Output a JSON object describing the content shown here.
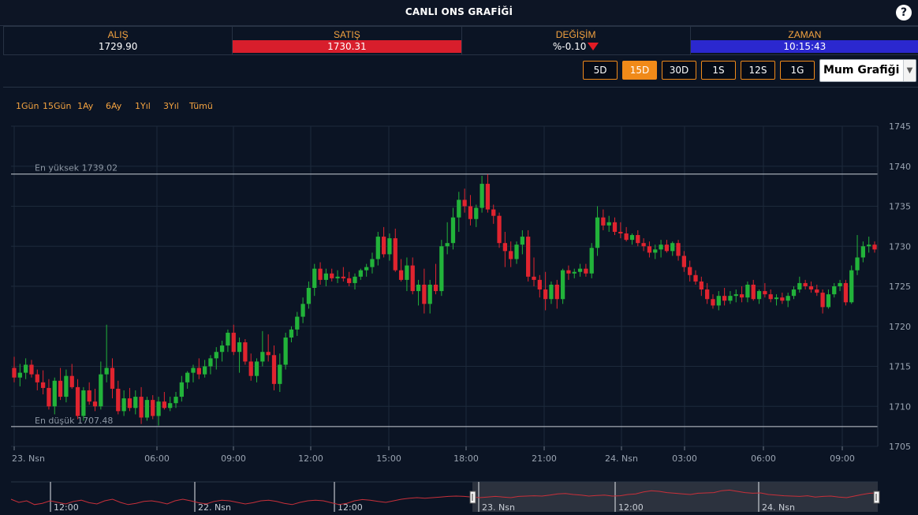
{
  "header": {
    "title": "CANLI ONS GRAFİĞİ",
    "help_label": "?"
  },
  "quotes": {
    "bid": {
      "label": "ALIŞ",
      "value": "1729.90"
    },
    "ask": {
      "label": "SATIŞ",
      "value": "1730.31"
    },
    "change": {
      "label": "DEĞİŞİM",
      "value": "%-0.10"
    },
    "time": {
      "label": "ZAMAN",
      "value": "10:15:43"
    }
  },
  "toolbar": {
    "periods": [
      "5D",
      "15D",
      "30D",
      "1S",
      "12S",
      "1G"
    ],
    "active_period": "15D",
    "chart_type": "Mum Grafiği"
  },
  "ranges": [
    "1Gün",
    "15Gün",
    "1Ay",
    "6Ay",
    "1Yıl",
    "3Yıl",
    "Tümü"
  ],
  "colors": {
    "up": "#22b33a",
    "down": "#e0242f",
    "accent": "#f08a19",
    "navigator_line": "#c8303a"
  },
  "chart_data": {
    "type": "candlestick",
    "ylim": [
      1705,
      1745
    ],
    "y_ticks": [
      1705,
      1710,
      1715,
      1720,
      1725,
      1730,
      1735,
      1740,
      1745
    ],
    "x_ticks": [
      "23. Nsn",
      "06:00",
      "09:00",
      "12:00",
      "15:00",
      "18:00",
      "21:00",
      "24. Nsn",
      "03:00",
      "06:00",
      "09:00"
    ],
    "high_line": {
      "label": "En yüksek 1739.02",
      "value": 1739.02
    },
    "low_line": {
      "label": "En düşük 1707.48",
      "value": 1707.48
    },
    "candles": [
      [
        1714.8,
        1716.2,
        1713.0,
        1713.6
      ],
      [
        1713.6,
        1715.3,
        1712.5,
        1714.2
      ],
      [
        1714.2,
        1716.0,
        1713.4,
        1715.2
      ],
      [
        1715.2,
        1715.8,
        1713.6,
        1714.0
      ],
      [
        1714.0,
        1714.6,
        1712.0,
        1713.0
      ],
      [
        1713.0,
        1714.5,
        1711.5,
        1712.3
      ],
      [
        1712.3,
        1713.4,
        1709.6,
        1710.0
      ],
      [
        1710.0,
        1713.6,
        1709.0,
        1713.2
      ],
      [
        1713.2,
        1714.8,
        1710.8,
        1711.2
      ],
      [
        1711.2,
        1714.6,
        1710.5,
        1713.8
      ],
      [
        1713.8,
        1715.3,
        1712.2,
        1712.4
      ],
      [
        1712.4,
        1713.4,
        1708.4,
        1708.8
      ],
      [
        1708.8,
        1712.4,
        1708.2,
        1712.0
      ],
      [
        1712.0,
        1713.0,
        1710.2,
        1710.6
      ],
      [
        1710.6,
        1712.2,
        1709.4,
        1710.0
      ],
      [
        1710.0,
        1715.6,
        1709.6,
        1714.0
      ],
      [
        1714.0,
        1720.2,
        1713.0,
        1714.8
      ],
      [
        1714.8,
        1716.0,
        1711.0,
        1712.2
      ],
      [
        1712.2,
        1713.2,
        1709.0,
        1709.4
      ],
      [
        1709.4,
        1712.0,
        1708.8,
        1711.0
      ],
      [
        1711.0,
        1712.3,
        1709.4,
        1709.8
      ],
      [
        1709.8,
        1712.0,
        1709.0,
        1711.2
      ],
      [
        1711.2,
        1712.4,
        1707.8,
        1708.6
      ],
      [
        1708.6,
        1711.2,
        1708.2,
        1710.8
      ],
      [
        1710.8,
        1711.4,
        1708.4,
        1708.8
      ],
      [
        1708.8,
        1711.2,
        1707.6,
        1710.6
      ],
      [
        1710.6,
        1711.8,
        1709.6,
        1709.8
      ],
      [
        1709.8,
        1711.2,
        1709.4,
        1710.4
      ],
      [
        1710.4,
        1711.8,
        1709.8,
        1711.2
      ],
      [
        1711.2,
        1713.8,
        1710.6,
        1713.0
      ],
      [
        1713.0,
        1714.4,
        1712.2,
        1714.2
      ],
      [
        1714.2,
        1715.2,
        1713.0,
        1714.8
      ],
      [
        1714.8,
        1716.0,
        1713.4,
        1714.0
      ],
      [
        1714.0,
        1715.8,
        1713.6,
        1715.0
      ],
      [
        1715.0,
        1716.4,
        1714.0,
        1716.0
      ],
      [
        1716.0,
        1717.4,
        1714.6,
        1716.8
      ],
      [
        1716.8,
        1718.2,
        1715.6,
        1717.6
      ],
      [
        1717.6,
        1719.6,
        1716.8,
        1719.2
      ],
      [
        1719.2,
        1720.2,
        1716.4,
        1716.8
      ],
      [
        1716.8,
        1718.6,
        1714.2,
        1718.0
      ],
      [
        1718.0,
        1718.4,
        1715.2,
        1715.6
      ],
      [
        1715.6,
        1716.6,
        1713.2,
        1713.8
      ],
      [
        1713.8,
        1716.0,
        1713.0,
        1715.6
      ],
      [
        1715.6,
        1719.4,
        1715.0,
        1716.8
      ],
      [
        1716.8,
        1719.0,
        1715.6,
        1716.4
      ],
      [
        1716.4,
        1717.6,
        1712.0,
        1712.8
      ],
      [
        1712.8,
        1716.6,
        1711.8,
        1715.2
      ],
      [
        1715.2,
        1719.2,
        1714.6,
        1718.6
      ],
      [
        1718.6,
        1720.0,
        1718.0,
        1719.6
      ],
      [
        1719.6,
        1721.8,
        1718.8,
        1721.2
      ],
      [
        1721.2,
        1723.6,
        1720.4,
        1722.8
      ],
      [
        1722.8,
        1725.6,
        1722.2,
        1724.8
      ],
      [
        1724.8,
        1727.8,
        1723.8,
        1727.2
      ],
      [
        1727.2,
        1728.0,
        1725.2,
        1725.8
      ],
      [
        1725.8,
        1727.2,
        1725.0,
        1726.6
      ],
      [
        1726.6,
        1727.2,
        1725.6,
        1726.0
      ],
      [
        1726.0,
        1727.0,
        1725.4,
        1726.2
      ],
      [
        1726.2,
        1727.4,
        1725.6,
        1726.0
      ],
      [
        1726.0,
        1726.8,
        1725.0,
        1725.4
      ],
      [
        1725.4,
        1726.6,
        1724.6,
        1726.2
      ],
      [
        1726.2,
        1727.2,
        1725.8,
        1727.0
      ],
      [
        1727.0,
        1727.8,
        1726.2,
        1727.4
      ],
      [
        1727.4,
        1729.2,
        1726.6,
        1728.4
      ],
      [
        1728.4,
        1731.8,
        1727.6,
        1731.2
      ],
      [
        1731.2,
        1732.4,
        1728.6,
        1729.0
      ],
      [
        1729.0,
        1731.6,
        1728.2,
        1731.0
      ],
      [
        1731.0,
        1732.2,
        1726.8,
        1727.0
      ],
      [
        1727.0,
        1728.4,
        1725.6,
        1725.8
      ],
      [
        1725.8,
        1728.6,
        1724.4,
        1727.6
      ],
      [
        1727.6,
        1728.6,
        1724.0,
        1724.4
      ],
      [
        1724.4,
        1725.8,
        1722.6,
        1725.2
      ],
      [
        1725.2,
        1727.2,
        1721.6,
        1722.8
      ],
      [
        1722.8,
        1725.8,
        1721.6,
        1725.2
      ],
      [
        1725.2,
        1727.8,
        1724.0,
        1724.4
      ],
      [
        1724.4,
        1730.8,
        1723.8,
        1730.0
      ],
      [
        1730.0,
        1733.0,
        1729.0,
        1730.4
      ],
      [
        1730.4,
        1734.8,
        1729.6,
        1733.6
      ],
      [
        1733.6,
        1736.8,
        1731.8,
        1735.8
      ],
      [
        1735.8,
        1737.2,
        1734.2,
        1735.0
      ],
      [
        1735.0,
        1736.4,
        1732.6,
        1733.4
      ],
      [
        1733.4,
        1735.2,
        1732.4,
        1734.8
      ],
      [
        1734.8,
        1738.8,
        1734.2,
        1737.8
      ],
      [
        1737.8,
        1739.0,
        1734.2,
        1734.6
      ],
      [
        1734.6,
        1735.2,
        1732.8,
        1733.8
      ],
      [
        1733.8,
        1734.2,
        1729.8,
        1730.4
      ],
      [
        1730.4,
        1731.8,
        1727.4,
        1729.4
      ],
      [
        1729.4,
        1730.6,
        1727.4,
        1728.4
      ],
      [
        1728.4,
        1730.6,
        1727.8,
        1730.2
      ],
      [
        1730.2,
        1732.0,
        1729.0,
        1731.2
      ],
      [
        1731.2,
        1732.0,
        1725.6,
        1726.2
      ],
      [
        1726.2,
        1728.6,
        1725.0,
        1725.8
      ],
      [
        1725.8,
        1726.4,
        1723.6,
        1724.6
      ],
      [
        1724.6,
        1726.8,
        1722.0,
        1723.4
      ],
      [
        1723.4,
        1725.6,
        1722.8,
        1725.2
      ],
      [
        1725.2,
        1725.8,
        1722.2,
        1723.4
      ],
      [
        1723.4,
        1727.2,
        1722.8,
        1727.0
      ],
      [
        1727.0,
        1727.6,
        1725.8,
        1726.6
      ],
      [
        1726.6,
        1727.2,
        1726.0,
        1726.8
      ],
      [
        1726.8,
        1727.8,
        1726.2,
        1727.2
      ],
      [
        1727.2,
        1727.8,
        1726.2,
        1726.6
      ],
      [
        1726.6,
        1730.4,
        1726.0,
        1729.8
      ],
      [
        1729.8,
        1735.0,
        1728.8,
        1733.6
      ],
      [
        1733.6,
        1734.6,
        1732.0,
        1732.6
      ],
      [
        1732.6,
        1733.8,
        1731.8,
        1733.0
      ],
      [
        1733.0,
        1733.6,
        1731.4,
        1731.8
      ],
      [
        1731.8,
        1733.0,
        1731.0,
        1731.6
      ],
      [
        1731.6,
        1732.4,
        1730.6,
        1730.8
      ],
      [
        1730.8,
        1731.6,
        1730.2,
        1731.4
      ],
      [
        1731.4,
        1732.0,
        1730.0,
        1730.4
      ],
      [
        1730.4,
        1731.0,
        1729.4,
        1730.0
      ],
      [
        1730.0,
        1730.6,
        1728.6,
        1729.2
      ],
      [
        1729.2,
        1730.2,
        1728.4,
        1729.6
      ],
      [
        1729.6,
        1730.8,
        1728.6,
        1730.2
      ],
      [
        1730.2,
        1730.8,
        1729.2,
        1729.4
      ],
      [
        1729.4,
        1730.6,
        1728.8,
        1730.4
      ],
      [
        1730.4,
        1730.8,
        1728.2,
        1728.8
      ],
      [
        1728.8,
        1729.4,
        1726.8,
        1727.4
      ],
      [
        1727.4,
        1728.2,
        1725.6,
        1726.4
      ],
      [
        1726.4,
        1727.0,
        1725.2,
        1725.6
      ],
      [
        1725.6,
        1726.2,
        1723.8,
        1724.6
      ],
      [
        1724.6,
        1725.4,
        1722.8,
        1723.4
      ],
      [
        1723.4,
        1724.0,
        1722.2,
        1722.6
      ],
      [
        1722.6,
        1724.4,
        1722.0,
        1723.8
      ],
      [
        1723.8,
        1724.8,
        1722.6,
        1723.2
      ],
      [
        1723.2,
        1724.4,
        1722.8,
        1723.8
      ],
      [
        1723.8,
        1724.6,
        1723.0,
        1724.0
      ],
      [
        1724.0,
        1725.0,
        1723.0,
        1723.6
      ],
      [
        1723.6,
        1725.6,
        1723.0,
        1725.2
      ],
      [
        1725.2,
        1725.8,
        1723.2,
        1723.4
      ],
      [
        1723.4,
        1724.6,
        1722.8,
        1724.4
      ],
      [
        1724.4,
        1725.4,
        1723.6,
        1724.0
      ],
      [
        1724.0,
        1724.6,
        1723.0,
        1723.4
      ],
      [
        1723.4,
        1724.0,
        1722.6,
        1723.6
      ],
      [
        1723.6,
        1724.2,
        1722.8,
        1723.2
      ],
      [
        1723.2,
        1724.2,
        1722.4,
        1723.8
      ],
      [
        1723.8,
        1725.0,
        1723.4,
        1724.6
      ],
      [
        1724.6,
        1726.2,
        1724.2,
        1725.4
      ],
      [
        1725.4,
        1725.8,
        1724.6,
        1725.0
      ],
      [
        1725.0,
        1725.6,
        1724.2,
        1724.6
      ],
      [
        1724.6,
        1725.2,
        1723.8,
        1724.2
      ],
      [
        1724.2,
        1724.6,
        1721.6,
        1722.4
      ],
      [
        1722.4,
        1724.6,
        1722.2,
        1724.0
      ],
      [
        1724.0,
        1725.4,
        1723.6,
        1725.0
      ],
      [
        1725.0,
        1725.8,
        1724.4,
        1725.4
      ],
      [
        1725.4,
        1725.8,
        1722.6,
        1723.0
      ],
      [
        1723.0,
        1727.6,
        1722.8,
        1727.0
      ],
      [
        1727.0,
        1731.4,
        1726.4,
        1728.6
      ],
      [
        1728.6,
        1730.6,
        1728.0,
        1730.0
      ],
      [
        1730.0,
        1731.2,
        1729.2,
        1730.2
      ],
      [
        1730.2,
        1730.6,
        1729.2,
        1729.6
      ]
    ]
  },
  "navigator": {
    "labels": [
      "12:00",
      "22. Nsn",
      "12:00",
      "23. Nsn",
      "12:00",
      "24. Nsn"
    ],
    "points": [
      0.45,
      0.55,
      0.5,
      0.62,
      0.58,
      0.5,
      0.55,
      0.6,
      0.52,
      0.48,
      0.56,
      0.6,
      0.5,
      0.45,
      0.55,
      0.62,
      0.58,
      0.52,
      0.5,
      0.54,
      0.6,
      0.5,
      0.45,
      0.5,
      0.56,
      0.6,
      0.52,
      0.48,
      0.5,
      0.55,
      0.6,
      0.56,
      0.5,
      0.48,
      0.52,
      0.58,
      0.62,
      0.55,
      0.5,
      0.48,
      0.5,
      0.56,
      0.62,
      0.58,
      0.5,
      0.46,
      0.48,
      0.52,
      0.55,
      0.5,
      0.45,
      0.42,
      0.4,
      0.42,
      0.4,
      0.38,
      0.36,
      0.35,
      0.36,
      0.38,
      0.4,
      0.38,
      0.36,
      0.38,
      0.4,
      0.36,
      0.35,
      0.34,
      0.35,
      0.32,
      0.28,
      0.27,
      0.3,
      0.32,
      0.35,
      0.33,
      0.32,
      0.35,
      0.34,
      0.3,
      0.28,
      0.22,
      0.18,
      0.2,
      0.24,
      0.26,
      0.28,
      0.3,
      0.26,
      0.25,
      0.24,
      0.18,
      0.16,
      0.2,
      0.24,
      0.26,
      0.25,
      0.3,
      0.32,
      0.34,
      0.35,
      0.36,
      0.34,
      0.38,
      0.36,
      0.35,
      0.38,
      0.4,
      0.35,
      0.3,
      0.26,
      0.25
    ]
  }
}
